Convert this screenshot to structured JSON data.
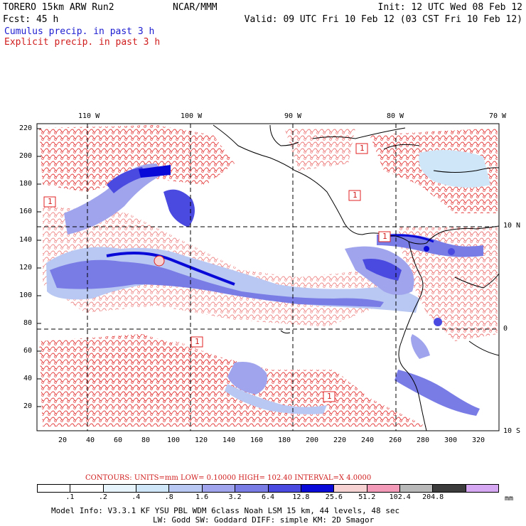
{
  "header": {
    "model": "TORERO  15km ARW   Run2",
    "org": "NCAR/MMM",
    "init": "Init: 12 UTC Wed 08 Feb 12",
    "fcst": "Fcst:   45 h",
    "valid": "Valid: 09 UTC Fri 10 Feb 12 (03 CST Fri 10 Feb 12)",
    "cumulus_label": "Cumulus precip. in past 3 h",
    "explicit_label": "Explicit precip. in past 3 h"
  },
  "map": {
    "lon_labels": [
      "110 W",
      "100 W",
      "90 W",
      "80 W",
      "70 W"
    ],
    "lat_labels": [
      "10 N",
      "0",
      "10 S"
    ],
    "y_ticks": [
      "220",
      "200",
      "180",
      "160",
      "140",
      "120",
      "100",
      "80",
      "60",
      "40",
      "20"
    ],
    "x_ticks": [
      "20",
      "40",
      "60",
      "80",
      "100",
      "120",
      "140",
      "160",
      "180",
      "200",
      "220",
      "240",
      "260",
      "280",
      "300",
      "320"
    ],
    "low_markers": [
      "1",
      "1",
      "1",
      "1",
      "1",
      "1"
    ]
  },
  "contours_info": {
    "text": "CONTOURS:  UNITS=mm  LOW= 0.10000      HIGH=  102.40      INTERVAL=X  4.0000"
  },
  "colorbar": {
    "labels": [
      ".1",
      ".2",
      ".4",
      ".8",
      "1.6",
      "3.2",
      "6.4",
      "12.8",
      "25.6",
      "51.2",
      "102.4",
      "204.8"
    ],
    "unit": "mm",
    "colors": [
      "#ffffff",
      "#ffffff",
      "#e8f4fc",
      "#cfe6f8",
      "#b9c8f2",
      "#a0a4ec",
      "#7a7ce6",
      "#4a4ae0",
      "#0a0ad8",
      "#f6d2d2",
      "#f29ab8",
      "#b9b9b9",
      "#3c3c3c",
      "#d6a8f4"
    ]
  },
  "model_info": {
    "line1": "Model Info: V3.3.1    KF     YSU PBL  WDM 6class  Noah LSM  15 km,   44 levels,   48 sec",
    "line2": "LW: Godd SW: Goddard DIFF: simple KM: 2D Smagor"
  }
}
